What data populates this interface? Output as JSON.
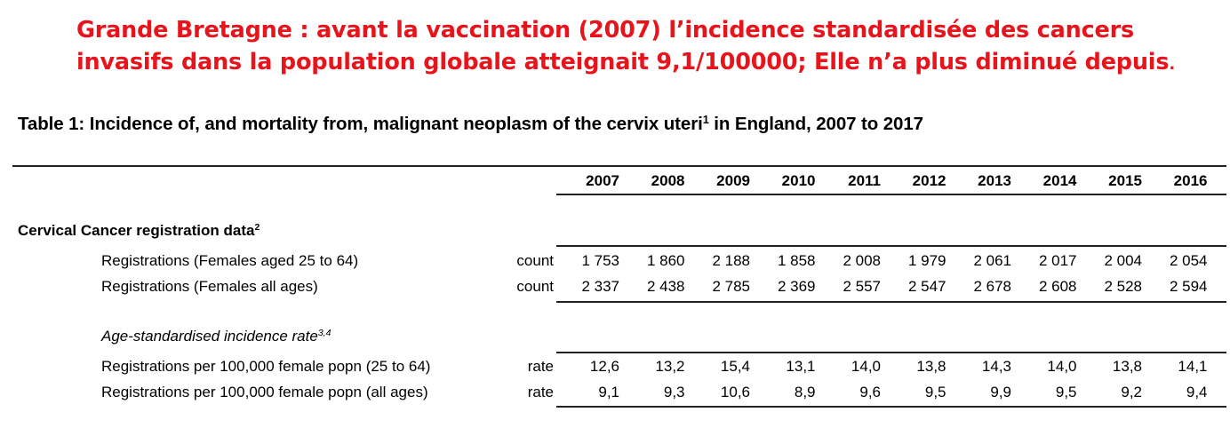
{
  "headline": {
    "line1": "Grande Bretagne : avant la vaccination (2007) l’incidence standardisée des cancers",
    "line2": "invasifs  dans la population globale atteignait 9,1/100000; Elle n’a plus diminué depuis",
    "line2_end": ".",
    "color": "#e8141b"
  },
  "table": {
    "title": "Table 1: Incidence of, and mortality from, malignant neoplasm of the cervix uteri",
    "title_sup": "1",
    "title_end": " in England, 2007 to 2017",
    "years": [
      "2007",
      "2008",
      "2009",
      "2010",
      "2011",
      "2012",
      "2013",
      "2014",
      "2015",
      "2016"
    ],
    "section1": {
      "title": "Cervical Cancer registration data",
      "title_sup": "2",
      "rows": [
        {
          "label": "Registrations (Females aged 25 to 64)",
          "unit": "count",
          "values": [
            "1 753",
            "1 860",
            "2 188",
            "1 858",
            "2 008",
            "1 979",
            "2 061",
            "2 017",
            "2 004",
            "2 054"
          ]
        },
        {
          "label": "Registrations (Females all ages)",
          "unit": "count",
          "values": [
            "2 337",
            "2 438",
            "2 785",
            "2 369",
            "2 557",
            "2 547",
            "2 678",
            "2 608",
            "2 528",
            "2 594"
          ]
        }
      ]
    },
    "section2": {
      "title": "Age-standardised incidence rate",
      "title_sup": "3,4",
      "rows": [
        {
          "label": "Registrations per 100,000 female popn (25 to 64)",
          "unit": "rate",
          "values": [
            "12,6",
            "13,2",
            "15,4",
            "13,1",
            "14,0",
            "13,8",
            "14,3",
            "14,0",
            "13,8",
            "14,1"
          ]
        },
        {
          "label": "Registrations per 100,000 female popn (all ages)",
          "unit": "rate",
          "values": [
            "9,1",
            "9,3",
            "10,6",
            "8,9",
            "9,6",
            "9,5",
            "9,9",
            "9,5",
            "9,2",
            "9,4"
          ]
        }
      ]
    }
  }
}
